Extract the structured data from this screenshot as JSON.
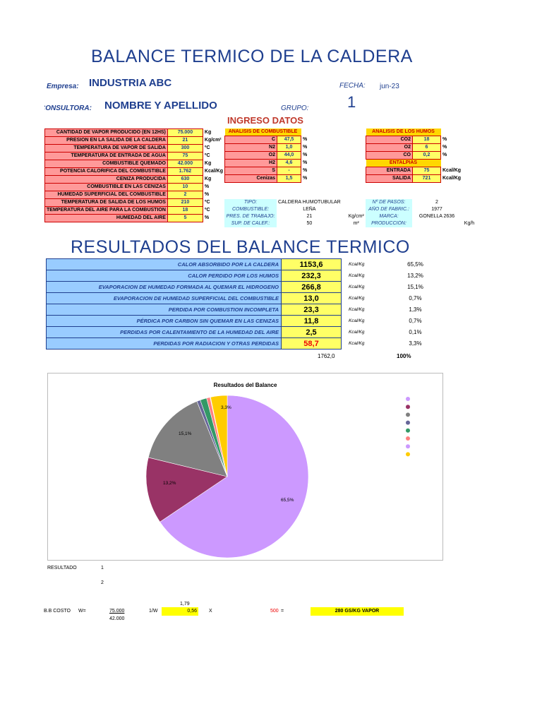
{
  "title": "BALANCE TERMICO DE  LA CALDERA",
  "header": {
    "empresa_label": "Empresa:",
    "empresa_value": "INDUSTRIA ABC",
    "fecha_label": "FECHA:",
    "fecha_value": "jun-23",
    "consultora_label": "CONSULTORA:",
    "consultora_value": "NOMBRE Y APELLIDO",
    "grupo_label": "GRUPO:",
    "grupo_value": "1"
  },
  "ingreso_title": "INGRESO DATOS",
  "inputs": [
    {
      "label": "CANTIDAD DE VAPOR PRODUCIDO (EN 12HS)",
      "value": "75.000",
      "unit": "Kg"
    },
    {
      "label": "PRESION EN LA SALIDA DE LA CALDERA",
      "value": "21",
      "unit": "Kg/cm²"
    },
    {
      "label": "TEMPERATURA DE VAPOR DE SALIDA",
      "value": "300",
      "unit": "ºC"
    },
    {
      "label": "TEMPERATURA DE ENTRADA DE AGUA",
      "value": "75",
      "unit": "ºC"
    },
    {
      "label": "COMBUSTIBLE QUEMADO",
      "value": "42.000",
      "unit": "Kg"
    },
    {
      "label": "POTENCIA CALORIFICA DEL COMBUSTIBLE",
      "value": "1.762",
      "unit": "Kcal/Kg"
    },
    {
      "label": "CENIZA PRODUCIDA",
      "value": "630",
      "unit": "Kg"
    },
    {
      "label": "COMBUSTIBLE EN LAS CENIZAS",
      "value": "10",
      "unit": "%"
    },
    {
      "label": "HUMEDAD SUPERFICIAL DEL COMBUSTIBLE",
      "value": "2",
      "unit": "%"
    },
    {
      "label": "TEMPERATURA DE SALIDA DE LOS HUMOS",
      "value": "210",
      "unit": "ºC"
    },
    {
      "label": "TEMPERATURA DEL AIRE PARA LA COMBUSTION",
      "value": "18",
      "unit": "ºC"
    },
    {
      "label": "HUMEDAD DEL AIRE",
      "value": "5",
      "unit": "%"
    }
  ],
  "combustible": {
    "header": "ANALISIS DE COMBUSTIBLE",
    "rows": [
      {
        "label": "C",
        "value": "47,5",
        "unit": "%"
      },
      {
        "label": "N2",
        "value": "1,0",
        "unit": "%"
      },
      {
        "label": "O2",
        "value": "44,0",
        "unit": "%"
      },
      {
        "label": "H2",
        "value": "4,6",
        "unit": "%"
      },
      {
        "label": "S",
        "value": "-",
        "unit": "%"
      },
      {
        "label": "Cenizas",
        "value": "1,5",
        "unit": "%"
      }
    ]
  },
  "humos": {
    "header": "ANALISIS DE LOS HUMOS",
    "rows": [
      {
        "label": "CO2",
        "value": "18",
        "unit": "%"
      },
      {
        "label": "O2",
        "value": "6",
        "unit": "%"
      },
      {
        "label": "CO",
        "value": "0,2",
        "unit": "%"
      }
    ],
    "entalpias_header": "ENTALPIAS",
    "entalpias": [
      {
        "label": "ENTRADA",
        "value": "75",
        "unit": "Kcal/Kg"
      },
      {
        "label": "SALIDA",
        "value": "721",
        "unit": "Kcal/Kg"
      }
    ]
  },
  "caldera_info": [
    {
      "label": "TIPO:",
      "value": "CALDERA HUMOTUBULAR",
      "unit": ""
    },
    {
      "label": "COMBUSTIBLE:",
      "value": "LEÑA",
      "unit": ""
    },
    {
      "label": "PRES. DE TRABAJO:",
      "value": "21",
      "unit": "Kg/cm²"
    },
    {
      "label": "SUP. DE CALEF.:",
      "value": "50",
      "unit": "m²"
    }
  ],
  "caldera_info2": [
    {
      "label": "Nº DE PASOS:",
      "value": "2",
      "unit": ""
    },
    {
      "label": "AÑO DE FABRIC.:",
      "value": "1977",
      "unit": ""
    },
    {
      "label": "MARCA:",
      "value": "GONELLA 2636",
      "unit": ""
    },
    {
      "label": "PRODUCCIÓN:",
      "value": "",
      "unit": "Kg/h"
    }
  ],
  "resultados_title": "RESULTADOS DEL BALANCE TERMICO",
  "resultados": [
    {
      "label": "CALOR ABSORBIDO POR LA CALDERA",
      "value": "1153,6",
      "unit": "Kcal/Kg",
      "pct": "65,5%",
      "highlight": false
    },
    {
      "label": "CALOR PERDIDO POR LOS HUMOS",
      "value": "232,3",
      "unit": "Kcal/Kg",
      "pct": "13,2%",
      "highlight": false
    },
    {
      "label": "EVAPORACION DE HUMEDAD FORMADA AL QUEMAR EL HIDROGENO",
      "value": "266,8",
      "unit": "Kcal/Kg",
      "pct": "15,1%",
      "highlight": false
    },
    {
      "label": "EVAPORACION DE HUMEDAD SUPERFICIAL DEL COMBUSTIBLE",
      "value": "13,0",
      "unit": "Kcal/Kg",
      "pct": "0,7%",
      "highlight": false
    },
    {
      "label": "PERDIDA POR COMBUSTION INCOMPLETA",
      "value": "23,3",
      "unit": "Kcal/Kg",
      "pct": "1,3%",
      "highlight": false
    },
    {
      "label": "PÉRDICA POR CARBON SIN QUEMAR EN LAS CENIZAS",
      "value": "11,8",
      "unit": "Kcal/Kg",
      "pct": "0,7%",
      "highlight": false
    },
    {
      "label": "PERDIDAS POR CALENTAMIENTO DE LA HUMEDAD DEL AIRE",
      "value": "2,5",
      "unit": "Kcal/Kg",
      "pct": "0,1%",
      "highlight": false
    },
    {
      "label": "PERDIDAS POR RADIACION Y OTRAS PERDIDAS",
      "value": "58,7",
      "unit": "Kcal/Kg",
      "pct": "3,3%",
      "highlight": true
    }
  ],
  "totals": {
    "value": "1762,0",
    "pct": "100%"
  },
  "chart_data": {
    "type": "pie",
    "title": "Resultados del Balance",
    "values": [
      65.5,
      13.2,
      15.1,
      0.7,
      1.3,
      0.7,
      0.1,
      3.3
    ],
    "labels": [
      "65,5%",
      "13,2%",
      "15,1%",
      "",
      "",
      "",
      "",
      "3,3%"
    ],
    "colors": [
      "#cc99ff",
      "#993366",
      "#808080",
      "#666699",
      "#339966",
      "#ff8080",
      "#cc99ff",
      "#ffcc00"
    ],
    "legend": "right"
  },
  "footer": {
    "resultado_label": "RESULTADO",
    "resultado_1": "1",
    "resultado_2": "2",
    "costo_label": "B.B COSTO",
    "w_label": "W=",
    "w_num": "75.000",
    "w_den": "42.000",
    "top_val": "1,79",
    "inv_label": "1/W",
    "inv_val": "0,56",
    "x_label": "X",
    "price": "500",
    "eq": "=",
    "result": "280  GS/KG VAPOR"
  }
}
